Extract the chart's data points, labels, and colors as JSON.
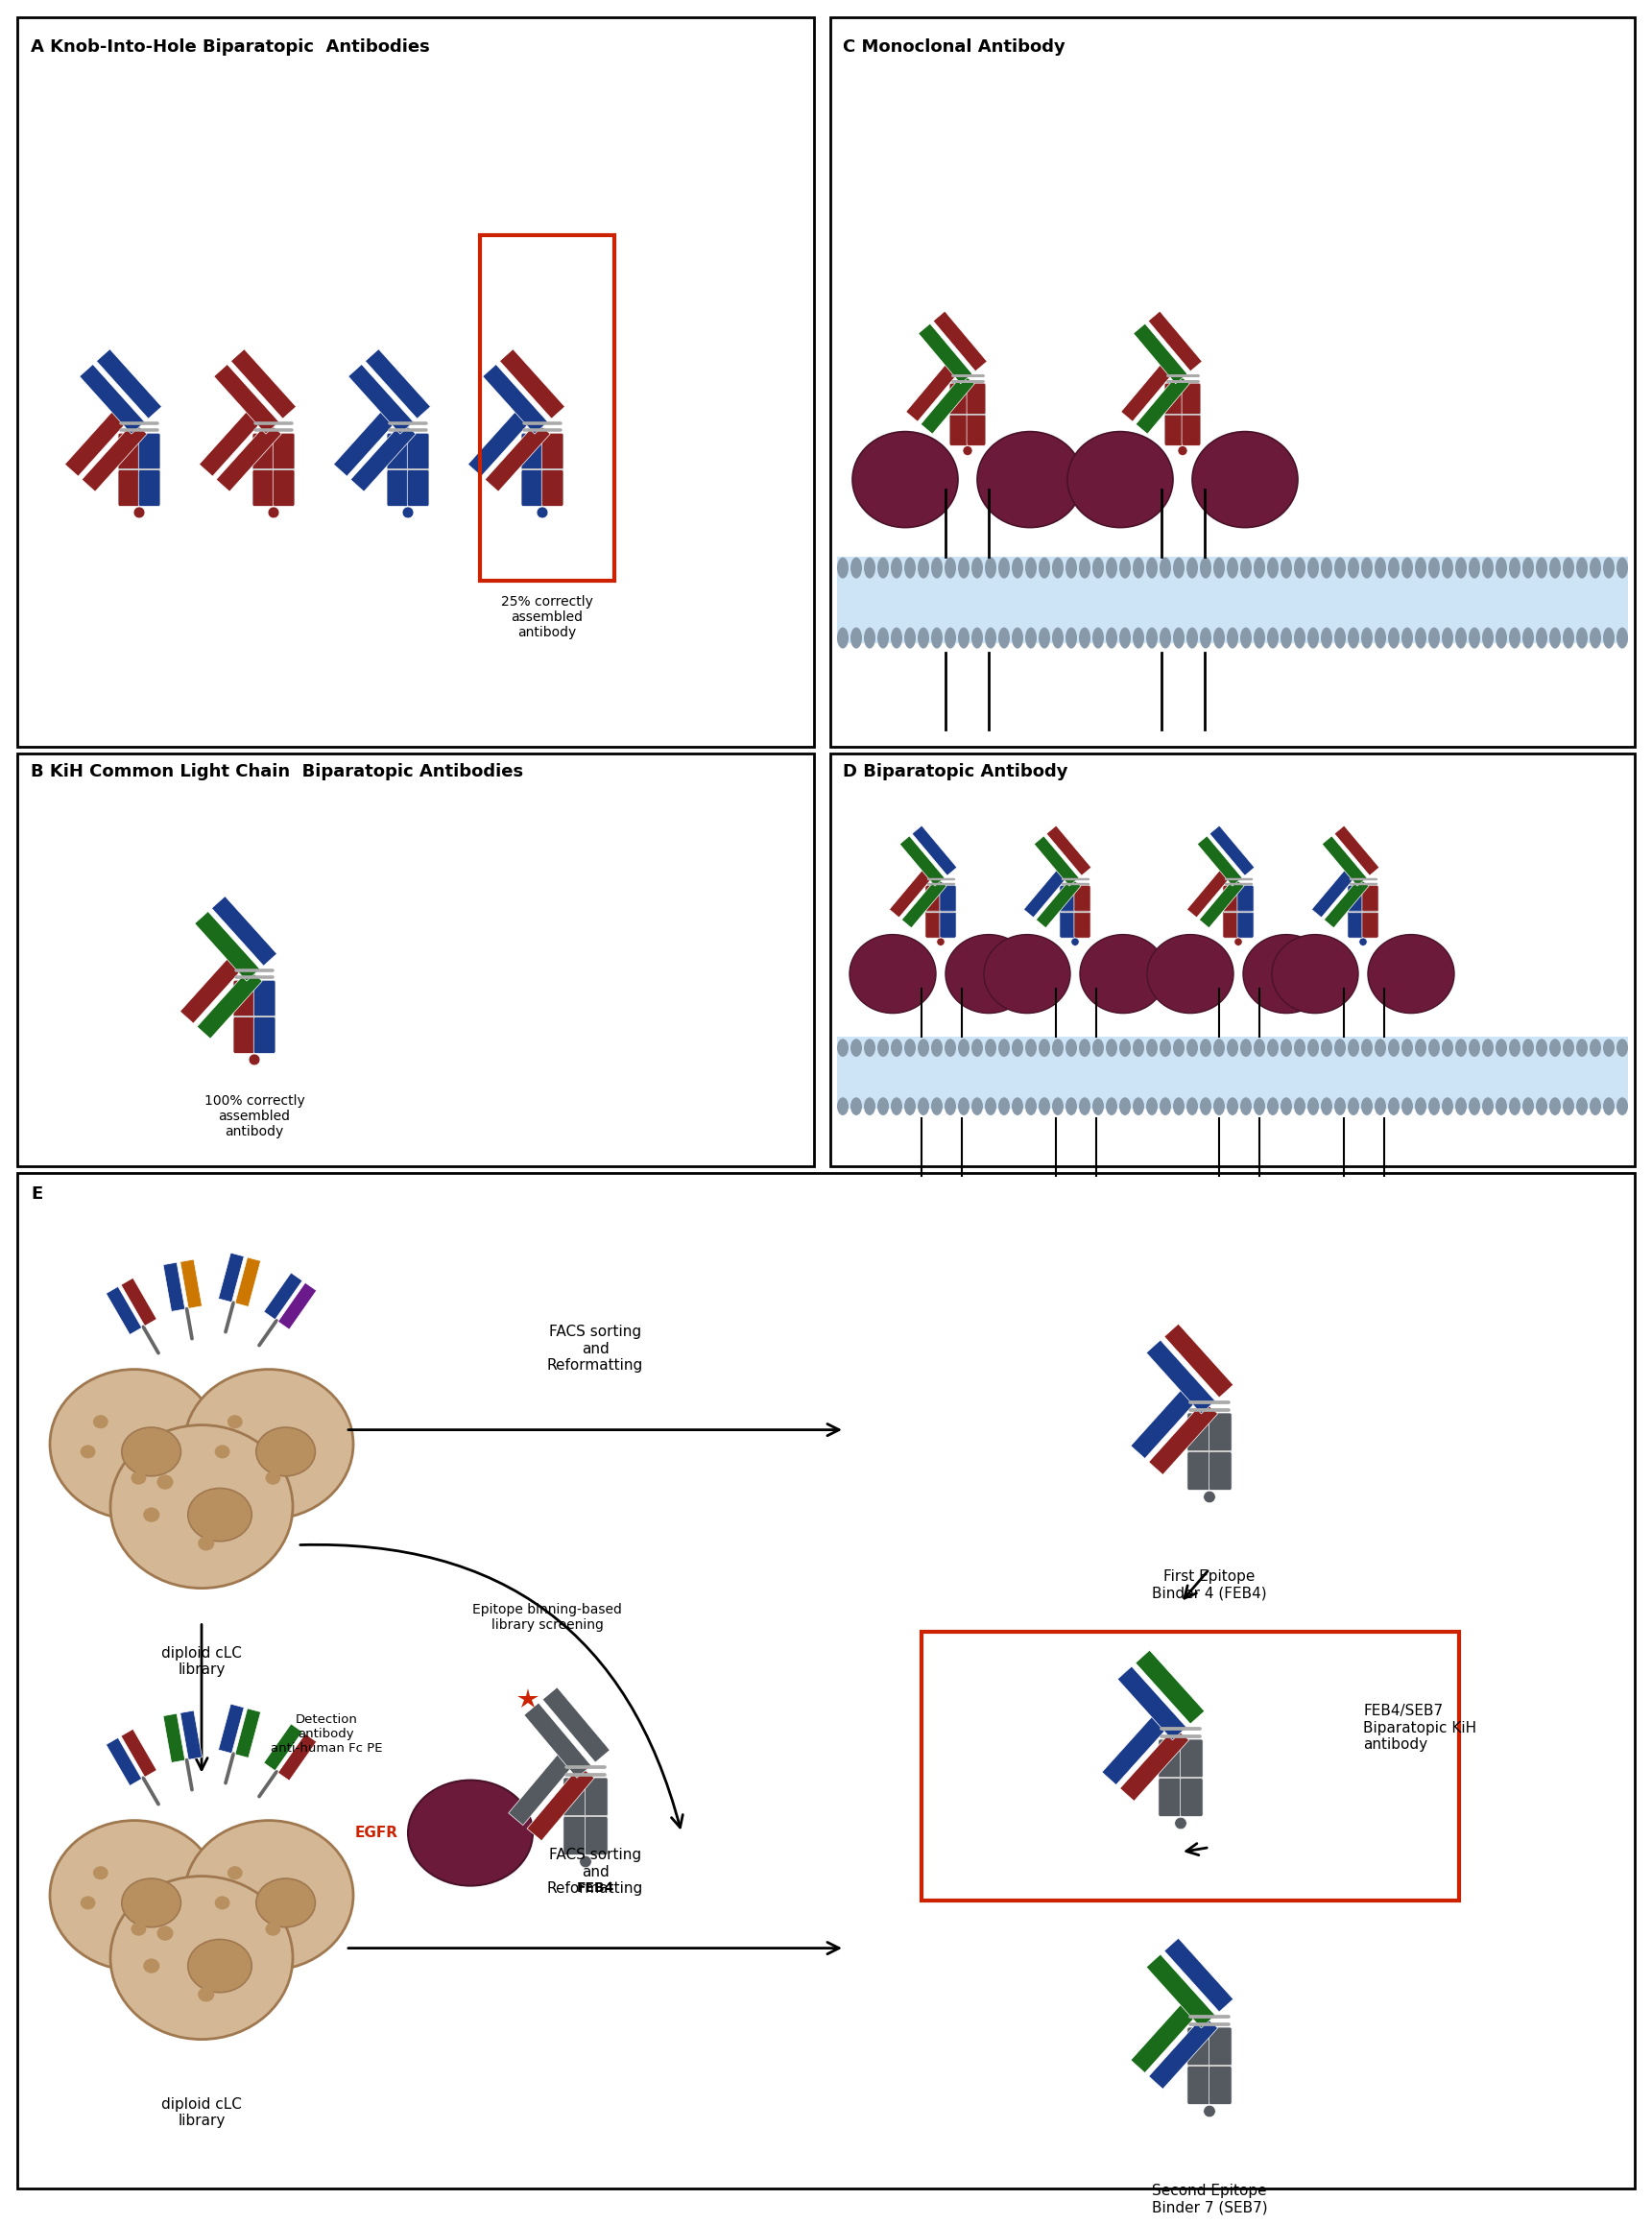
{
  "fig_width": 17.01,
  "fig_height": 22.78,
  "bg_color": "#ffffff",
  "panel_A_title": "A Knob-Into-Hole Biparatopic  Antibodies",
  "panel_B_title": "B KiH Common Light Chain  Biparatopic Antibodies",
  "panel_C_title": "C Monoclonal Antibody",
  "panel_D_title": "D Biparatopic Antibody",
  "panel_E_label": "E",
  "text_25pct": "25% correctly\nassembled\nantibody",
  "text_100pct": "100% correctly\nassembled\nantibody",
  "text_facs1": "FACS sorting\nand\nReformatting",
  "text_facs2": "FACS sorting\nand\nReformatting",
  "text_epitope_bin": "Epitope binning-based\nlibrary screening",
  "text_detection": "Detection\nantibody\nanti-human Fc PE",
  "text_feb4_label": "FEB4",
  "text_egfr": "EGFR",
  "text_first_epitope": "First Epitope\nBinder 4 (FEB4)",
  "text_feb4_seb7": "FEB4/SEB7\nBiparatopic KiH\nantibody",
  "text_second_epitope": "Second Epitope\nBinder 7 (SEB7)",
  "text_diploid1": "diploid cLC\nlibrary",
  "text_diploid2": "diploid cLC\nlibrary",
  "col_red": "#8B2020",
  "col_blue": "#1a3a8a",
  "col_green": "#1a6b1a",
  "col_gray": "#555a60",
  "col_orange": "#cc7700",
  "col_purple": "#6b1a8b",
  "col_receptor": "#6b1a3a",
  "col_cell_body": "#d4b896",
  "col_cell_edge": "#a07850",
  "col_cell_nucleus": "#b89060",
  "col_membrane_fill": "#cce4f5",
  "col_membrane_dots": "#8899aa",
  "col_hinge": "#888888"
}
